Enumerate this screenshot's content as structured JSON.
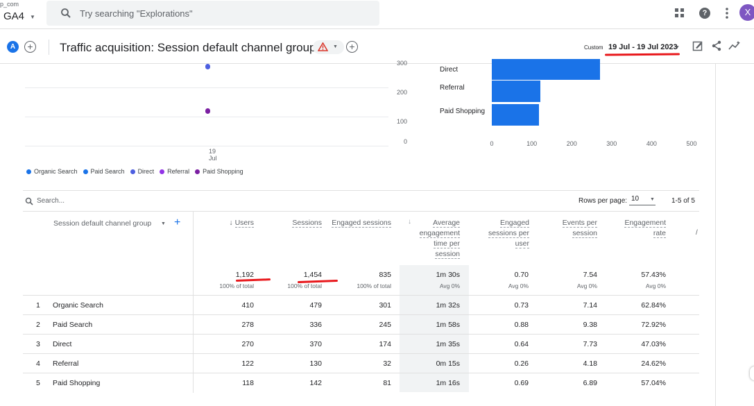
{
  "topbar": {
    "property_small": "p_com",
    "property_name": "GA4",
    "search_placeholder": "Try searching \"Explorations\"",
    "avatar_letter": "X"
  },
  "report": {
    "compare_label": "A",
    "title": "Traffic acquisition: Session default channel group",
    "date_prefix": "Custom",
    "date_range": "19 Jul - 19 Jul 2023"
  },
  "line_chart": {
    "type": "scatter",
    "y_ticks": [
      "300",
      "200",
      "100",
      "0"
    ],
    "x_tick_day": "19",
    "x_tick_month": "Jul",
    "legend": [
      {
        "name": "Organic Search",
        "color": "#1a73e8"
      },
      {
        "name": "Paid Search",
        "color": "#1a73e8"
      },
      {
        "name": "Direct",
        "color": "#4d5fe0"
      },
      {
        "name": "Referral",
        "color": "#9334e6"
      },
      {
        "name": "Paid Shopping",
        "color": "#7b1fa2"
      }
    ]
  },
  "chart_data": {
    "type": "bar",
    "orientation": "horizontal",
    "categories": [
      "Direct",
      "Referral",
      "Paid Shopping"
    ],
    "values": [
      270,
      122,
      118
    ],
    "x_ticks": [
      "0",
      "100",
      "200",
      "300",
      "400",
      "500"
    ],
    "xlim": [
      0,
      500
    ],
    "color": "#1a73e8"
  },
  "table": {
    "search_placeholder": "Search...",
    "rows_per_page_label": "Rows per page:",
    "rows_per_page": "10",
    "pager": "1-5 of 5",
    "dimension_header": "Session default channel group",
    "columns": [
      {
        "label": "Users",
        "sort": "↓"
      },
      {
        "label": "Sessions"
      },
      {
        "label": "Engaged sessions"
      },
      {
        "label": "Average engagement time per session"
      },
      {
        "label": "Engaged sessions per user"
      },
      {
        "label": "Events per session"
      },
      {
        "label": "Engagement rate"
      }
    ],
    "totals": [
      "1,192",
      "1,454",
      "835",
      "1m 30s",
      "0.70",
      "7.54",
      "57.43%"
    ],
    "totals_sub": [
      "100% of total",
      "100% of total",
      "100% of total",
      "Avg 0%",
      "Avg 0%",
      "Avg 0%",
      "Avg 0%"
    ],
    "rows": [
      {
        "idx": "1",
        "name": "Organic Search",
        "values": [
          "410",
          "479",
          "301",
          "1m 32s",
          "0.73",
          "7.14",
          "62.84%"
        ]
      },
      {
        "idx": "2",
        "name": "Paid Search",
        "values": [
          "278",
          "336",
          "245",
          "1m 58s",
          "0.88",
          "9.38",
          "72.92%"
        ]
      },
      {
        "idx": "3",
        "name": "Direct",
        "values": [
          "270",
          "370",
          "174",
          "1m 35s",
          "0.64",
          "7.73",
          "47.03%"
        ]
      },
      {
        "idx": "4",
        "name": "Referral",
        "values": [
          "122",
          "130",
          "32",
          "0m 15s",
          "0.26",
          "4.18",
          "24.62%"
        ]
      },
      {
        "idx": "5",
        "name": "Paid Shopping",
        "values": [
          "118",
          "142",
          "81",
          "1m 16s",
          "0.69",
          "6.89",
          "57.04%"
        ]
      }
    ]
  }
}
